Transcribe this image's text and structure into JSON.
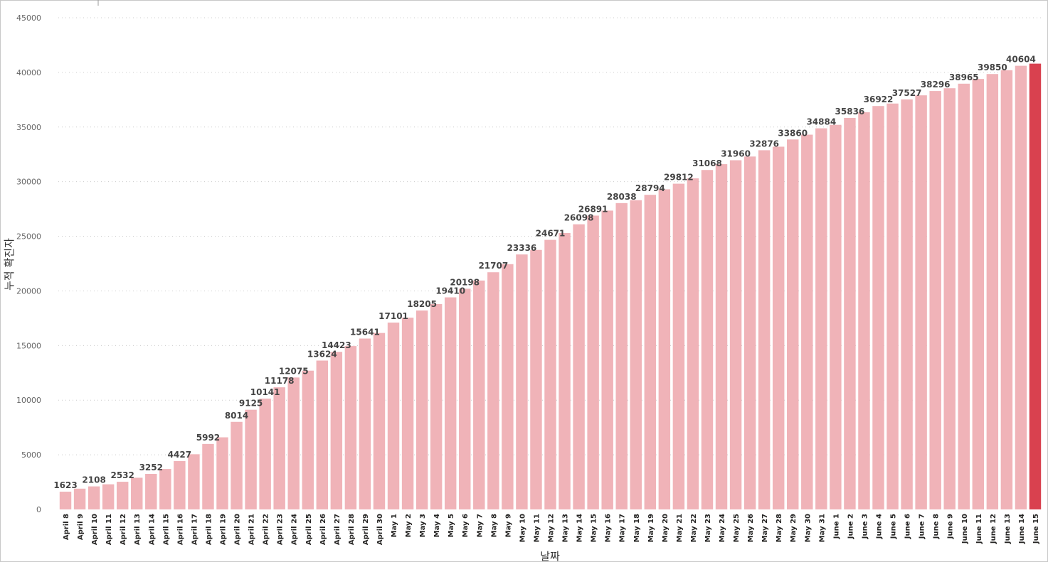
{
  "chart_data": {
    "type": "bar",
    "xlabel": "날짜",
    "ylabel": "누적 확진자",
    "ylim": [
      0,
      45000
    ],
    "yticks": [
      0,
      5000,
      10000,
      15000,
      20000,
      25000,
      30000,
      35000,
      40000,
      45000
    ],
    "grid": true,
    "colors": {
      "bar": "#f0b3b8",
      "highlight": "#d9414f"
    },
    "highlight_category": "June 15",
    "categories": [
      "April 8",
      "April 9",
      "April 10",
      "April 11",
      "April 12",
      "April 13",
      "April 14",
      "April 15",
      "April 16",
      "April 17",
      "April 18",
      "April 19",
      "April 20",
      "April 21",
      "April 22",
      "April 23",
      "April 24",
      "April 25",
      "April 26",
      "April 27",
      "April 28",
      "April 29",
      "April 30",
      "May 1",
      "May 2",
      "May 3",
      "May 4",
      "May 5",
      "May 6",
      "May 7",
      "May 8",
      "May 9",
      "May 10",
      "May 11",
      "May 12",
      "May 13",
      "May 14",
      "May 15",
      "May 16",
      "May 17",
      "May 18",
      "May 19",
      "May 20",
      "May 21",
      "May 22",
      "May 23",
      "May 24",
      "May 25",
      "May 26",
      "May 27",
      "May 28",
      "May 29",
      "May 30",
      "May 31",
      "June 1",
      "June 2",
      "June 3",
      "June 4",
      "June 5",
      "June 6",
      "June 7",
      "June 8",
      "June 9",
      "June 10",
      "June 11",
      "June 12",
      "June 13",
      "June 14",
      "June 15"
    ],
    "values": [
      1623,
      1900,
      2108,
      2300,
      2532,
      2900,
      3252,
      3700,
      4427,
      5050,
      5992,
      6600,
      8014,
      9125,
      10141,
      11178,
      12075,
      12700,
      13624,
      14423,
      14950,
      15641,
      16150,
      17101,
      17550,
      18205,
      18800,
      19410,
      20198,
      20950,
      21707,
      22450,
      23336,
      23750,
      24671,
      25300,
      26098,
      26891,
      27350,
      28038,
      28300,
      28794,
      29300,
      29812,
      30300,
      31068,
      31600,
      31960,
      32300,
      32876,
      33200,
      33860,
      34300,
      34884,
      35200,
      35836,
      36350,
      36922,
      37150,
      37527,
      37900,
      38296,
      38550,
      38965,
      39400,
      39850,
      40200,
      40604,
      40800
    ],
    "data_labels": {
      "April 8": 1623,
      "April 10": 2108,
      "April 12": 2532,
      "April 14": 3252,
      "April 16": 4427,
      "April 18": 5992,
      "April 20": 8014,
      "April 21": 9125,
      "April 22": 10141,
      "April 23": 11178,
      "April 24": 12075,
      "April 26": 13624,
      "April 27": 14423,
      "April 29": 15641,
      "May 1": 17101,
      "May 3": 18205,
      "May 5": 19410,
      "May 6": 20198,
      "May 8": 21707,
      "May 10": 23336,
      "May 12": 24671,
      "May 14": 26098,
      "May 15": 26891,
      "May 17": 28038,
      "May 19": 28794,
      "May 21": 29812,
      "May 23": 31068,
      "May 25": 31960,
      "May 27": 32876,
      "May 29": 33860,
      "May 31": 34884,
      "June 2": 35836,
      "June 4": 36922,
      "June 6": 37527,
      "June 8": 38296,
      "June 10": 38965,
      "June 12": 39850,
      "June 14": 40604
    }
  }
}
